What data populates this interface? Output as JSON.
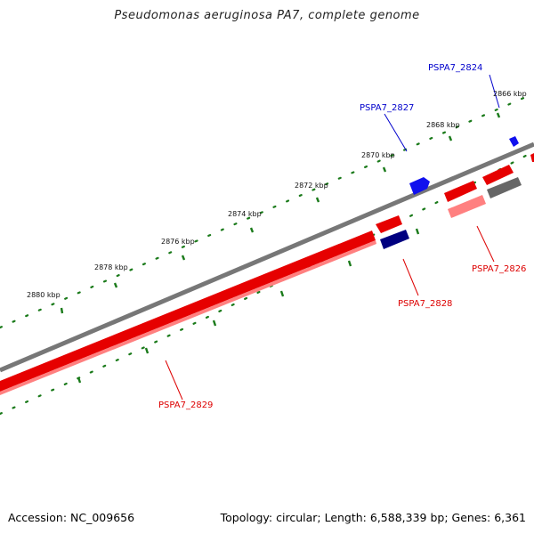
{
  "title": "Pseudomonas aeruginosa PA7, complete genome",
  "footer": {
    "accession": "Accession: NC_009656",
    "summary": "Topology: circular; Length: 6,588,339 bp; Genes: 6,361"
  },
  "colors": {
    "backbone": "#777777",
    "tick": "#1a7a1a",
    "forward_gene": "#e00000",
    "forward_gene_light": "#ff8080",
    "reverse_gene": "#1010ee",
    "reverse_gene_dark": "#000080",
    "other_feature": "#666666",
    "label_blue": "#0000cc",
    "label_red": "#dd0000"
  },
  "scale_labels": [
    {
      "id": "2866",
      "text": "2866 kbp"
    },
    {
      "id": "2868",
      "text": "2868 kbp"
    },
    {
      "id": "2870",
      "text": "2870 kbp"
    },
    {
      "id": "2872",
      "text": "2872 kbp"
    },
    {
      "id": "2874",
      "text": "2874 kbp"
    },
    {
      "id": "2876",
      "text": "2876 kbp"
    },
    {
      "id": "2878",
      "text": "2878 kbp"
    },
    {
      "id": "2880",
      "text": "2880 kbp"
    }
  ],
  "gene_labels": [
    {
      "id": "PSPA7_2824",
      "text": "PSPA7_2824",
      "strand": "reverse"
    },
    {
      "id": "PSPA7_2827",
      "text": "PSPA7_2827",
      "strand": "reverse"
    },
    {
      "id": "PSPA7_2826",
      "text": "PSPA7_2826",
      "strand": "forward"
    },
    {
      "id": "PSPA7_2828",
      "text": "PSPA7_2828",
      "strand": "forward"
    },
    {
      "id": "PSPA7_2829",
      "text": "PSPA7_2829",
      "strand": "forward"
    }
  ]
}
